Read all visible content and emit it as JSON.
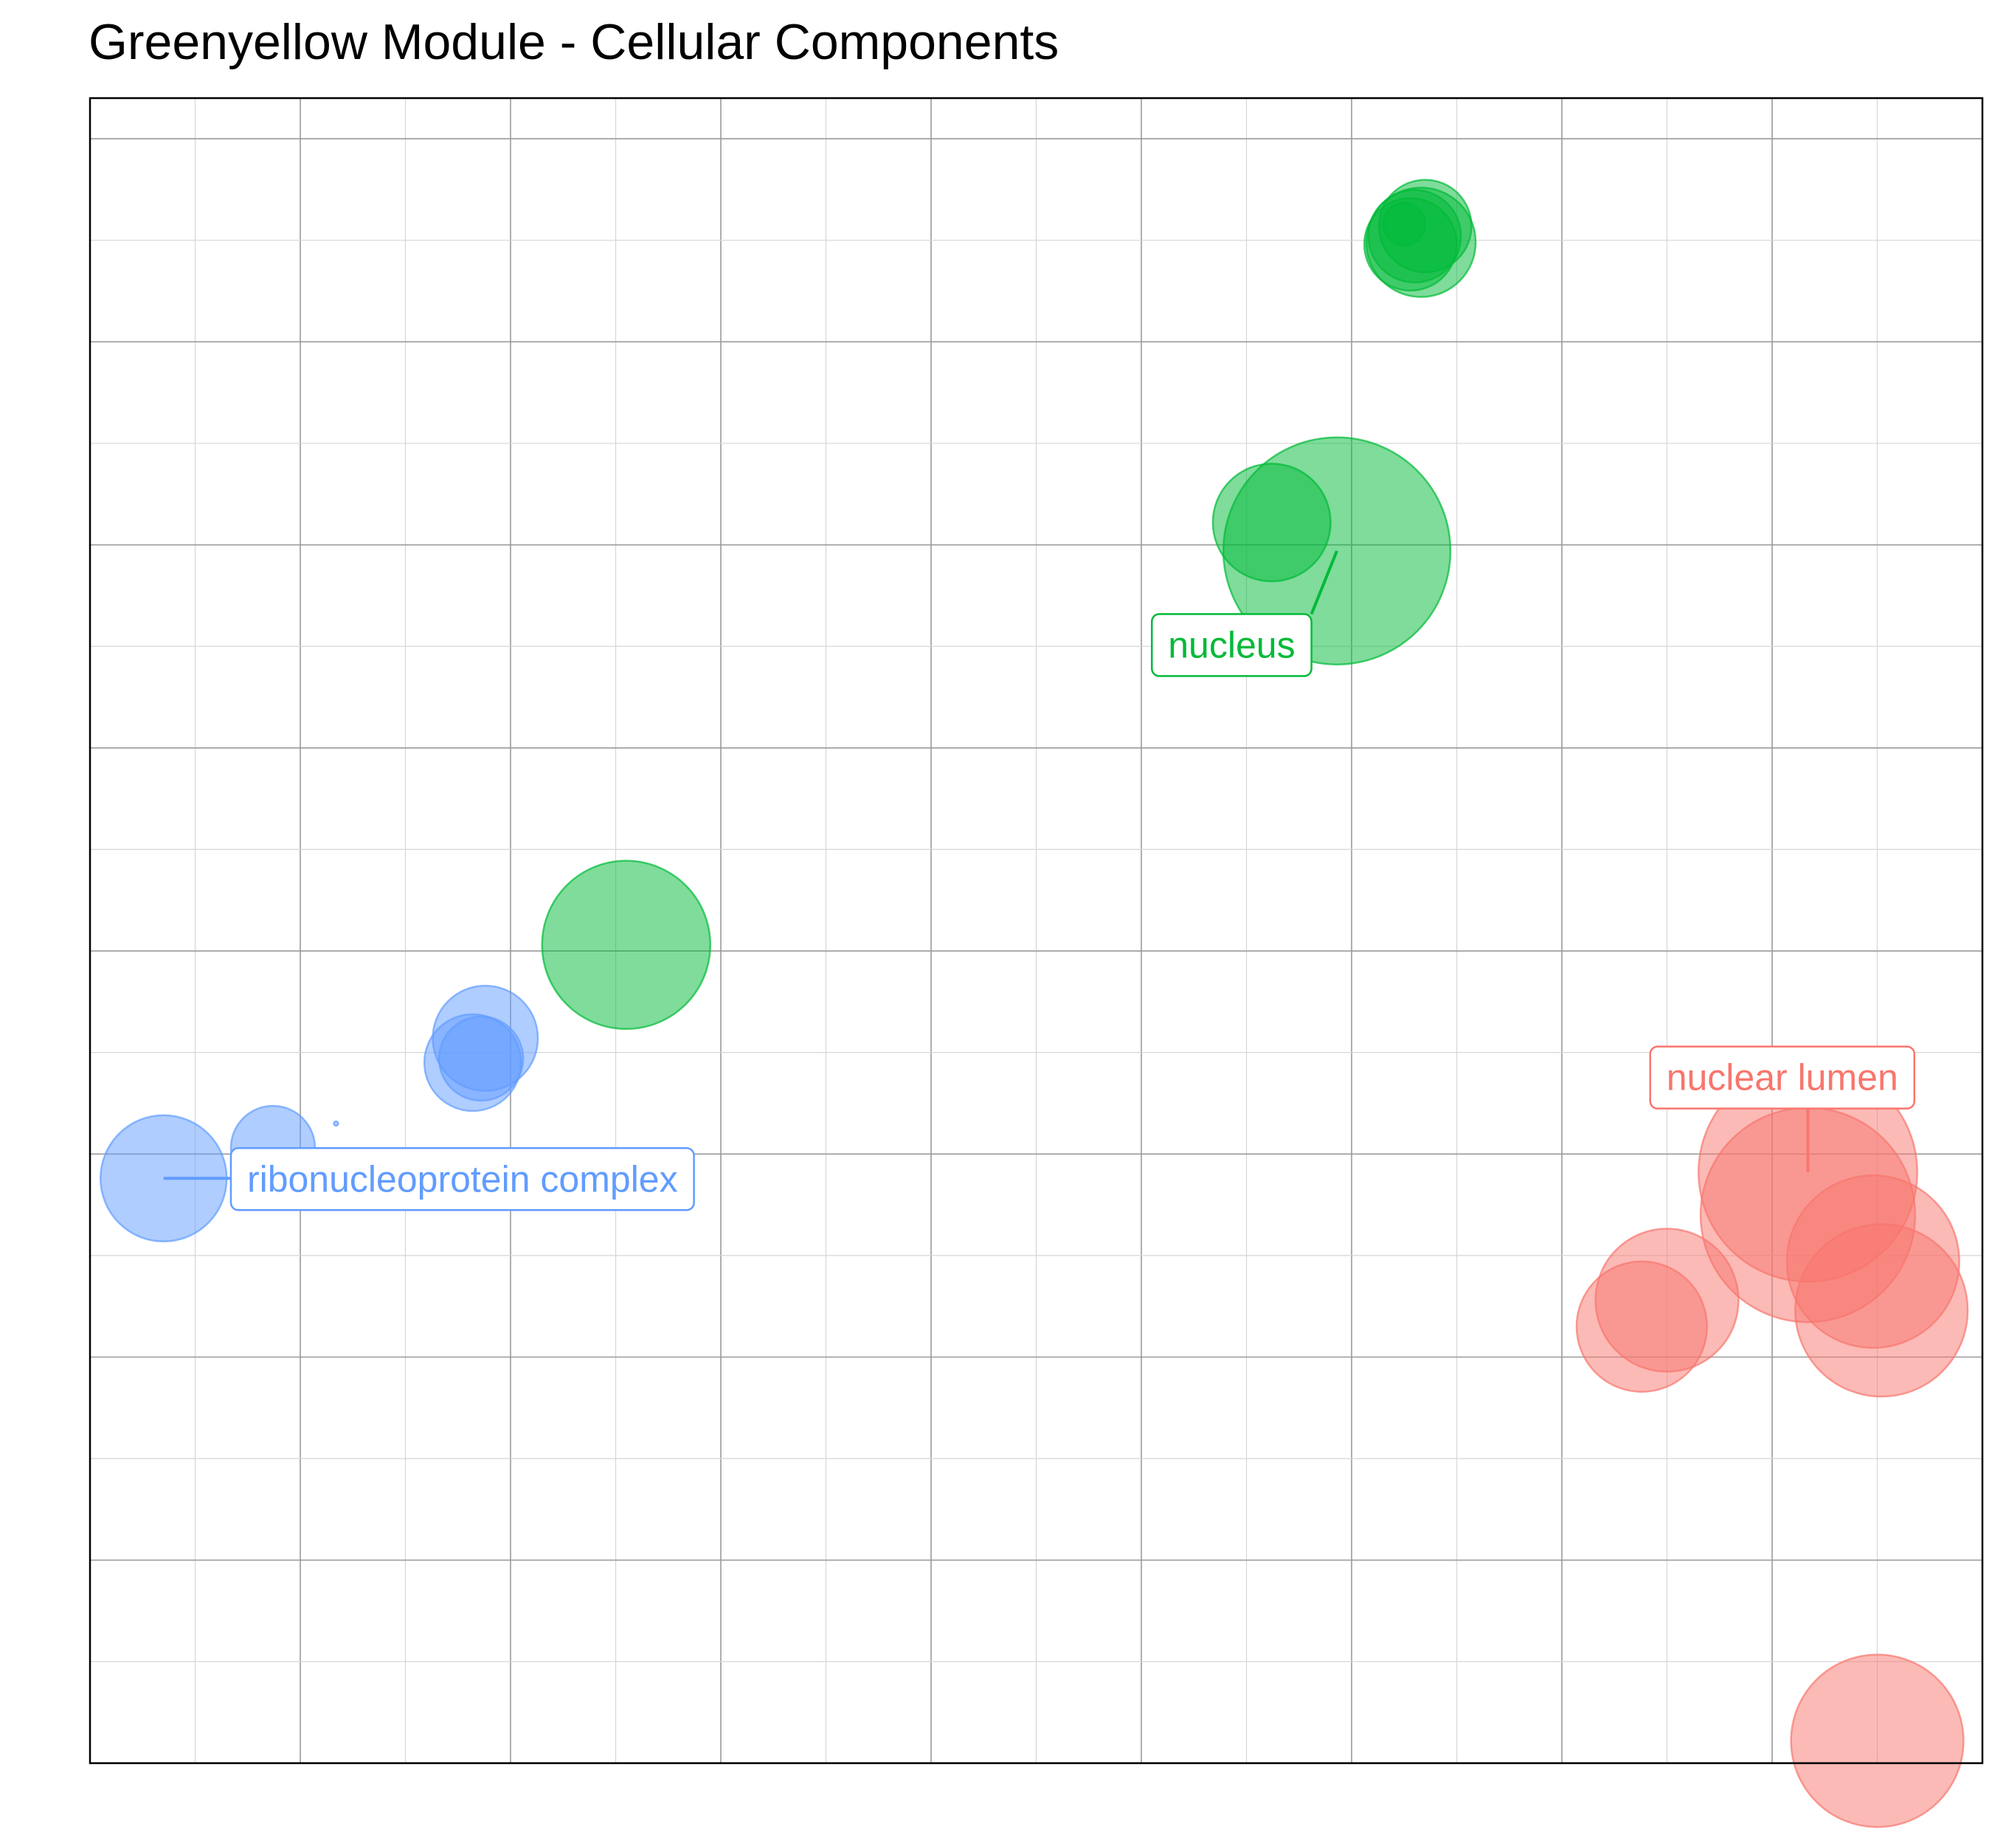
{
  "chart_data": {
    "type": "scatter",
    "title": "Greenyellow Module - Cellular Components",
    "xlabel": "",
    "ylabel": "",
    "xlim": [
      0,
      9
    ],
    "ylim": [
      0,
      8.2
    ],
    "grid": true,
    "legend": "none",
    "series": [
      {
        "color": "#619CFF",
        "points": [
          {
            "x": 0.35,
            "y": 2.88,
            "size": 0.3
          },
          {
            "x": 0.87,
            "y": 3.03,
            "size": 0.2
          },
          {
            "x": 1.17,
            "y": 3.15,
            "size": 0.01
          },
          {
            "x": 1.88,
            "y": 3.57,
            "size": 0.25
          },
          {
            "x": 1.86,
            "y": 3.47,
            "size": 0.2
          },
          {
            "x": 1.82,
            "y": 3.45,
            "size": 0.23
          }
        ]
      },
      {
        "color": "#00BA38",
        "points": [
          {
            "x": 2.55,
            "y": 4.03,
            "size": 0.4
          },
          {
            "x": 5.62,
            "y": 6.11,
            "size": 0.28
          },
          {
            "x": 5.93,
            "y": 5.97,
            "size": 0.54
          },
          {
            "x": 6.35,
            "y": 7.57,
            "size": 0.22
          },
          {
            "x": 6.33,
            "y": 7.49,
            "size": 0.26
          },
          {
            "x": 6.28,
            "y": 7.48,
            "size": 0.22
          },
          {
            "x": 6.3,
            "y": 7.52,
            "size": 0.22
          },
          {
            "x": 6.25,
            "y": 7.58,
            "size": 0.1
          }
        ]
      },
      {
        "color": "#F8766D",
        "points": [
          {
            "x": 8.17,
            "y": 2.91,
            "size": 0.52
          },
          {
            "x": 8.17,
            "y": 2.7,
            "size": 0.51
          },
          {
            "x": 7.5,
            "y": 2.28,
            "size": 0.34
          },
          {
            "x": 7.38,
            "y": 2.15,
            "size": 0.31
          },
          {
            "x": 8.48,
            "y": 2.47,
            "size": 0.41
          },
          {
            "x": 8.52,
            "y": 2.23,
            "size": 0.41
          },
          {
            "x": 8.5,
            "y": 0.11,
            "size": 0.41
          }
        ]
      }
    ],
    "annotations": [
      {
        "text": "ribonucleoprotein complex",
        "x": 0.35,
        "y": 2.88,
        "color": "#619CFF"
      },
      {
        "text": "nucleus",
        "x": 5.93,
        "y": 5.97,
        "color": "#00BA38"
      },
      {
        "text": "nuclear lumen",
        "x": 8.17,
        "y": 2.91,
        "color": "#F8766D"
      }
    ]
  }
}
